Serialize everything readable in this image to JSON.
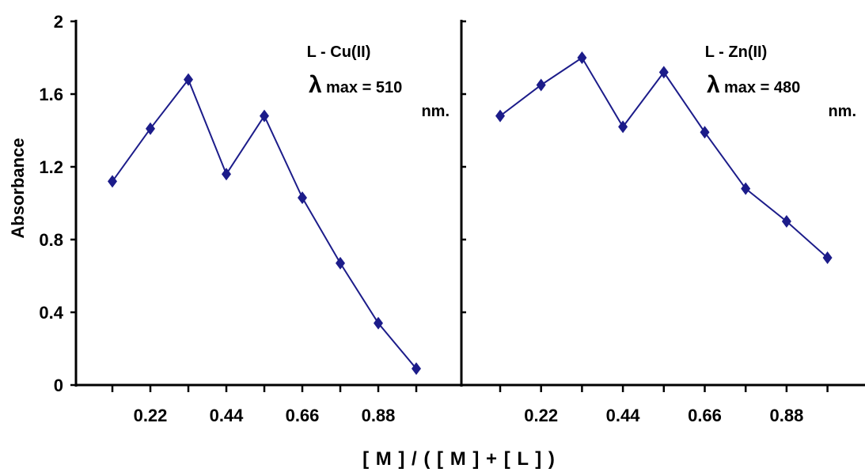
{
  "chart_data": {
    "type": "line",
    "ylabel": "Absorbance",
    "xlabel": "[ M ] / ( [ M ] + [ L ] )",
    "ylim": [
      0,
      2
    ],
    "yticks": [
      "0",
      "0.4",
      "0.8",
      "1.2",
      "1.6",
      "2"
    ],
    "xticks": [
      "0.22",
      "0.44",
      "0.66",
      "0.88"
    ],
    "line_color": "#1c1c8a",
    "panels": [
      {
        "annotation": "L - Cu(II)",
        "lambda_symbol": "λ",
        "lambda_text": "max = 510",
        "unit": "nm.",
        "x": [
          0.11,
          0.22,
          0.33,
          0.44,
          0.55,
          0.66,
          0.77,
          0.88,
          0.99
        ],
        "y": [
          1.12,
          1.41,
          1.68,
          1.16,
          1.48,
          1.03,
          0.67,
          0.34,
          0.09
        ]
      },
      {
        "annotation": "L - Zn(II)",
        "lambda_symbol": "λ",
        "lambda_text": "max = 480",
        "unit": "nm.",
        "x": [
          0.11,
          0.22,
          0.33,
          0.44,
          0.55,
          0.66,
          0.77,
          0.88,
          0.99
        ],
        "y": [
          1.48,
          1.65,
          1.8,
          1.42,
          1.72,
          1.39,
          1.08,
          0.9,
          0.7
        ]
      }
    ]
  }
}
